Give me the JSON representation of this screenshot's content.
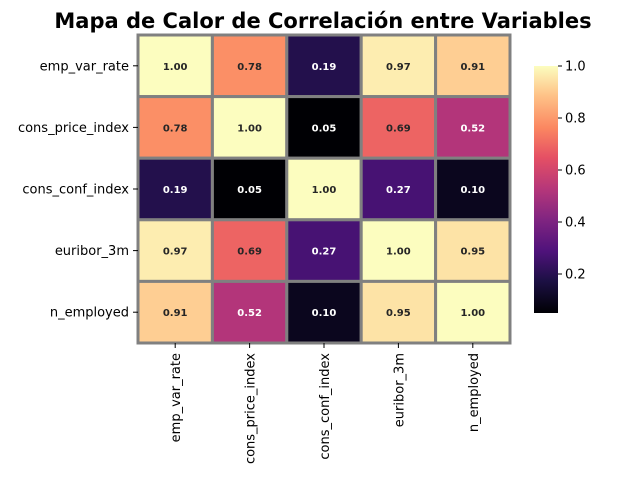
{
  "chart_data": {
    "type": "heatmap",
    "title": "Mapa de Calor de Correlación entre Variables",
    "row_labels": [
      "emp_var_rate",
      "cons_price_index",
      "cons_conf_index",
      "euribor_3m",
      "n_employed"
    ],
    "col_labels": [
      "emp_var_rate",
      "cons_price_index",
      "cons_conf_index",
      "euribor_3m",
      "n_employed"
    ],
    "values": [
      [
        1.0,
        0.78,
        0.19,
        0.97,
        0.91
      ],
      [
        0.78,
        1.0,
        0.05,
        0.69,
        0.52
      ],
      [
        0.19,
        0.05,
        1.0,
        0.27,
        0.1
      ],
      [
        0.97,
        0.69,
        0.27,
        1.0,
        0.95
      ],
      [
        0.91,
        0.52,
        0.1,
        0.95,
        1.0
      ]
    ],
    "colormap": "magma",
    "vmin": 0.05,
    "vmax": 1.0,
    "colorbar_ticks": [
      "0.2",
      "0.4",
      "0.6",
      "0.8",
      "1.0"
    ],
    "cell_border_color": "#808080",
    "annotation_format": "2 decimals"
  }
}
